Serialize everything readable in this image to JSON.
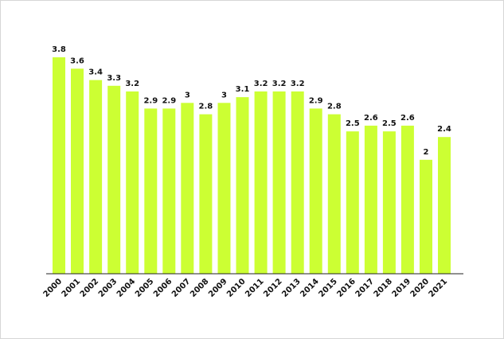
{
  "chart_data": {
    "type": "bar",
    "title": "",
    "xlabel": "",
    "ylabel": "",
    "categories": [
      "2000",
      "2001",
      "2002",
      "2003",
      "2004",
      "2005",
      "2006",
      "2007",
      "2008",
      "2009",
      "2010",
      "2011",
      "2012",
      "2013",
      "2014",
      "2015",
      "2016",
      "2017",
      "2018",
      "2019",
      "2020",
      "2021"
    ],
    "values": [
      3.8,
      3.6,
      3.4,
      3.3,
      3.2,
      2.9,
      2.9,
      3,
      2.8,
      3,
      3.1,
      3.2,
      3.2,
      3.2,
      2.9,
      2.8,
      2.5,
      2.6,
      2.5,
      2.6,
      2,
      2.4
    ],
    "value_labels": [
      "3.8",
      "3.6",
      "3.4",
      "3.3",
      "3.2",
      "2.9",
      "2.9",
      "3",
      "2.8",
      "3",
      "3.1",
      "3.2",
      "3.2",
      "3.2",
      "2.9",
      "2.8",
      "2.5",
      "2.6",
      "2.5",
      "2.6",
      "2",
      "2.4"
    ],
    "ylim": [
      0,
      3.8
    ],
    "grid": false,
    "legend": "none",
    "colors": {
      "bar": "#ccff33",
      "axis": "#222222",
      "text": "#111111"
    }
  }
}
